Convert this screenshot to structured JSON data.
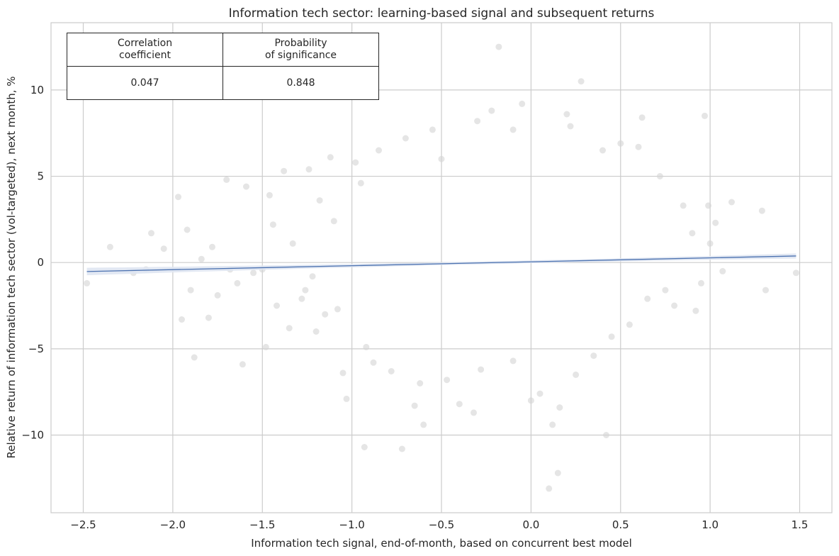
{
  "chart_data": {
    "type": "scatter",
    "title": "Information tech sector: learning-based signal and subsequent returns",
    "xlabel": "Information tech signal, end-of-month, based on concurrent best model",
    "ylabel": "Relative return of information tech sector (vol-targeted), next month, %",
    "xlim": [
      -2.68,
      1.68
    ],
    "ylim": [
      -14.5,
      13.9
    ],
    "x_ticks": [
      -2.5,
      -2.0,
      -1.5,
      -1.0,
      -0.5,
      0.0,
      0.5,
      1.0,
      1.5
    ],
    "x_tick_labels": [
      "−2.5",
      "−2.0",
      "−1.5",
      "−1.0",
      "−0.5",
      "0.0",
      "0.5",
      "1.0",
      "1.5"
    ],
    "y_ticks": [
      -10,
      -5,
      0,
      5,
      10
    ],
    "y_tick_labels": [
      "−10",
      "−5",
      "0",
      "5",
      "10"
    ],
    "grid": true,
    "regression_line": {
      "x": [
        -2.48,
        1.48
      ],
      "y": [
        -0.52,
        0.38
      ]
    },
    "points_note": "",
    "series": [
      {
        "type": "scatter",
        "color": "#d3d3d3",
        "points": [
          [
            -2.48,
            -1.2
          ],
          [
            -2.35,
            0.9
          ],
          [
            -2.22,
            -0.6
          ],
          [
            -2.12,
            1.7
          ],
          [
            -2.05,
            0.8
          ],
          [
            -1.97,
            3.8
          ],
          [
            -1.95,
            -3.3
          ],
          [
            -1.92,
            1.9
          ],
          [
            -1.88,
            -5.5
          ],
          [
            -1.84,
            0.2
          ],
          [
            -1.78,
            0.9
          ],
          [
            -1.75,
            -1.9
          ],
          [
            -1.7,
            4.8
          ],
          [
            -1.64,
            -1.2
          ],
          [
            -1.61,
            -5.9
          ],
          [
            -1.59,
            4.4
          ],
          [
            -1.55,
            -0.6
          ],
          [
            -1.48,
            -4.9
          ],
          [
            -1.46,
            3.9
          ],
          [
            -1.44,
            2.2
          ],
          [
            -1.38,
            5.3
          ],
          [
            -1.33,
            1.1
          ],
          [
            -1.28,
            -2.1
          ],
          [
            -1.24,
            5.4
          ],
          [
            -1.2,
            -4.0
          ],
          [
            -1.18,
            3.6
          ],
          [
            -1.15,
            -3.0
          ],
          [
            -1.12,
            6.1
          ],
          [
            -1.05,
            -6.4
          ],
          [
            -1.03,
            -7.9
          ],
          [
            -0.98,
            5.8
          ],
          [
            -0.93,
            -10.7
          ],
          [
            -0.88,
            -5.8
          ],
          [
            -0.85,
            6.5
          ],
          [
            -0.72,
            -10.8
          ],
          [
            -0.7,
            7.2
          ],
          [
            -0.65,
            -8.3
          ],
          [
            -0.6,
            -9.4
          ],
          [
            -0.55,
            7.7
          ],
          [
            -0.5,
            6.0
          ],
          [
            -0.4,
            -8.2
          ],
          [
            -0.32,
            -8.7
          ],
          [
            -0.3,
            8.2
          ],
          [
            -0.22,
            8.8
          ],
          [
            -0.18,
            12.5
          ],
          [
            -0.1,
            7.7
          ],
          [
            -0.05,
            9.2
          ],
          [
            0.0,
            -8.0
          ],
          [
            0.05,
            -7.6
          ],
          [
            0.1,
            -13.1
          ],
          [
            0.12,
            -9.4
          ],
          [
            0.15,
            -12.2
          ],
          [
            0.16,
            -8.4
          ],
          [
            0.2,
            8.6
          ],
          [
            0.22,
            7.9
          ],
          [
            0.28,
            10.5
          ],
          [
            0.35,
            -5.4
          ],
          [
            0.4,
            6.5
          ],
          [
            0.42,
            -10.0
          ],
          [
            0.5,
            6.9
          ],
          [
            0.6,
            6.7
          ],
          [
            0.62,
            8.4
          ],
          [
            0.72,
            5.0
          ],
          [
            0.8,
            -2.5
          ],
          [
            0.85,
            3.3
          ],
          [
            0.92,
            -2.8
          ],
          [
            0.97,
            8.5
          ],
          [
            0.99,
            3.3
          ],
          [
            1.0,
            1.1
          ],
          [
            1.03,
            2.3
          ],
          [
            1.07,
            -0.5
          ],
          [
            1.12,
            3.5
          ],
          [
            1.29,
            3.0
          ],
          [
            1.31,
            -1.6
          ],
          [
            1.48,
            -0.6
          ],
          [
            -2.15,
            -0.4
          ],
          [
            -1.9,
            -1.6
          ],
          [
            -1.8,
            -3.2
          ],
          [
            -1.68,
            -0.4
          ],
          [
            -1.5,
            -0.4
          ],
          [
            -1.42,
            -2.5
          ],
          [
            -1.35,
            -3.8
          ],
          [
            -1.26,
            -1.6
          ],
          [
            -1.22,
            -0.8
          ],
          [
            -1.1,
            2.4
          ],
          [
            -1.08,
            -2.7
          ],
          [
            -0.95,
            4.6
          ],
          [
            -0.92,
            -4.9
          ],
          [
            -0.78,
            -6.3
          ],
          [
            -0.62,
            -7.0
          ],
          [
            -0.47,
            -6.8
          ],
          [
            -0.28,
            -6.2
          ],
          [
            -0.1,
            -5.7
          ],
          [
            0.25,
            -6.5
          ],
          [
            0.45,
            -4.3
          ],
          [
            0.55,
            -3.6
          ],
          [
            0.65,
            -2.1
          ],
          [
            0.75,
            -1.6
          ],
          [
            0.9,
            1.7
          ],
          [
            0.95,
            -1.2
          ]
        ]
      }
    ]
  },
  "stats_table": {
    "headers": [
      [
        "Correlation",
        "coefficient"
      ],
      [
        "Probability",
        "of significance"
      ]
    ],
    "values": [
      "0.047",
      "0.848"
    ]
  },
  "colors": {
    "grid": "#cccccc",
    "points": "#d3d3d3",
    "line": "#4c72b0",
    "band": "#dfe6f2",
    "text": "#262626"
  }
}
